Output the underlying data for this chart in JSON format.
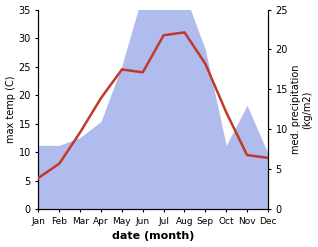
{
  "months": [
    "Jan",
    "Feb",
    "Mar",
    "Apr",
    "May",
    "Jun",
    "Jul",
    "Aug",
    "Sep",
    "Oct",
    "Nov",
    "Dec"
  ],
  "temperature": [
    5.5,
    8.0,
    13.5,
    19.5,
    24.5,
    24.0,
    30.5,
    31.0,
    25.5,
    17.0,
    9.5,
    9.0
  ],
  "precipitation": [
    8,
    8,
    9,
    11,
    18,
    27,
    26,
    27,
    20,
    8,
    13,
    7
  ],
  "temp_color": "#c0392b",
  "precip_color": "#b0bcee",
  "temp_ylim": [
    0,
    35
  ],
  "precip_ylim": [
    0,
    25
  ],
  "temp_yticks": [
    0,
    5,
    10,
    15,
    20,
    25,
    30,
    35
  ],
  "precip_yticks": [
    0,
    5,
    10,
    15,
    20,
    25
  ],
  "xlabel": "date (month)",
  "ylabel_left": "max temp (C)",
  "ylabel_right": "med. precipitation\n(kg/m2)",
  "bg_color": "#ffffff"
}
